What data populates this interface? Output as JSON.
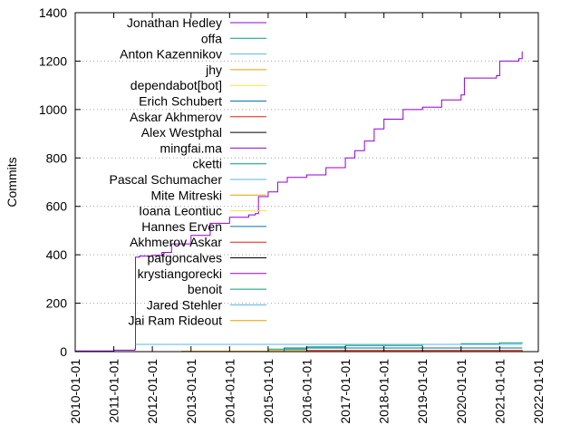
{
  "chart_data": {
    "type": "line",
    "title": "",
    "xlabel": "",
    "ylabel": "Commits",
    "xlim": [
      "2010-01-01",
      "2022-01-01"
    ],
    "ylim": [
      0,
      1400
    ],
    "yticks": [
      0,
      200,
      400,
      600,
      800,
      1000,
      1200,
      1400
    ],
    "xticks": [
      "2010-01-01",
      "2011-01-01",
      "2012-01-01",
      "2013-01-01",
      "2014-01-01",
      "2015-01-01",
      "2016-01-01",
      "2017-01-01",
      "2018-01-01",
      "2019-01-01",
      "2020-01-01",
      "2021-01-01",
      "2022-01-01"
    ],
    "grid": "y-dotted",
    "legend_position": "top-left",
    "series": [
      {
        "name": "Jonathan Hedley",
        "color": "#9400d3",
        "points": [
          [
            "2010-01-01",
            3
          ],
          [
            "2011-01-01",
            6
          ],
          [
            "2011-07-20",
            10
          ],
          [
            "2011-07-25",
            390
          ],
          [
            "2011-09-01",
            395
          ],
          [
            "2012-01-01",
            398
          ],
          [
            "2012-04-01",
            410
          ],
          [
            "2012-07-01",
            445
          ],
          [
            "2013-01-01",
            480
          ],
          [
            "2013-07-01",
            530
          ],
          [
            "2014-01-01",
            555
          ],
          [
            "2014-07-01",
            565
          ],
          [
            "2014-09-01",
            570
          ],
          [
            "2014-10-01",
            640
          ],
          [
            "2015-01-01",
            660
          ],
          [
            "2015-04-01",
            700
          ],
          [
            "2015-07-01",
            720
          ],
          [
            "2016-01-01",
            730
          ],
          [
            "2016-07-01",
            760
          ],
          [
            "2017-01-01",
            800
          ],
          [
            "2017-04-01",
            830
          ],
          [
            "2017-07-01",
            870
          ],
          [
            "2017-10-01",
            920
          ],
          [
            "2018-01-01",
            960
          ],
          [
            "2018-07-01",
            1000
          ],
          [
            "2019-01-01",
            1010
          ],
          [
            "2019-07-01",
            1040
          ],
          [
            "2020-01-01",
            1060
          ],
          [
            "2020-02-01",
            1130
          ],
          [
            "2020-12-01",
            1140
          ],
          [
            "2021-01-01",
            1200
          ],
          [
            "2021-07-01",
            1210
          ],
          [
            "2021-08-01",
            1240
          ]
        ]
      },
      {
        "name": "offa",
        "color": "#009e73",
        "points": [
          [
            "2014-09-01",
            0
          ],
          [
            "2015-01-01",
            10
          ],
          [
            "2016-01-01",
            20
          ],
          [
            "2017-01-01",
            25
          ],
          [
            "2019-01-01",
            30
          ],
          [
            "2020-01-01",
            33
          ],
          [
            "2021-01-01",
            36
          ],
          [
            "2021-08-01",
            38
          ]
        ]
      },
      {
        "name": "Anton Kazennikov",
        "color": "#56b4e9",
        "points": [
          [
            "2011-07-25",
            30
          ],
          [
            "2021-08-01",
            30
          ]
        ]
      },
      {
        "name": "jhy",
        "color": "#e69f00",
        "points": [
          [
            "2012-10-01",
            2
          ],
          [
            "2015-01-01",
            5
          ],
          [
            "2021-08-01",
            8
          ]
        ]
      },
      {
        "name": "dependabot[bot]",
        "color": "#f0e442",
        "points": [
          [
            "2020-01-01",
            0
          ],
          [
            "2021-08-01",
            6
          ]
        ]
      },
      {
        "name": "Erich Schubert",
        "color": "#0072b2",
        "points": [
          [
            "2014-06-01",
            0
          ],
          [
            "2015-06-01",
            15
          ],
          [
            "2021-08-01",
            15
          ]
        ]
      },
      {
        "name": "Askar Akhmerov",
        "color": "#e51e10",
        "points": [
          [
            "2016-01-01",
            5
          ],
          [
            "2021-08-01",
            5
          ]
        ]
      },
      {
        "name": "Alex Westphal",
        "color": "#000000",
        "points": [
          [
            "2013-01-01",
            0
          ],
          [
            "2021-08-01",
            4
          ]
        ]
      },
      {
        "name": "mingfai.ma",
        "color": "#9400d3",
        "points": [
          [
            "2012-01-01",
            0
          ],
          [
            "2021-08-01",
            3
          ]
        ]
      },
      {
        "name": "cketti",
        "color": "#009e73",
        "points": [
          [
            "2014-01-01",
            0
          ],
          [
            "2021-08-01",
            3
          ]
        ]
      },
      {
        "name": "Pascal Schumacher",
        "color": "#56b4e9",
        "points": [
          [
            "2016-01-01",
            0
          ],
          [
            "2021-08-01",
            3
          ]
        ]
      },
      {
        "name": "Mite Mitreski",
        "color": "#e69f00",
        "points": [
          [
            "2012-01-01",
            0
          ],
          [
            "2021-08-01",
            2
          ]
        ]
      },
      {
        "name": "Ioana Leontiuc",
        "color": "#f0e442",
        "points": [
          [
            "2015-01-01",
            0
          ],
          [
            "2021-08-01",
            2
          ]
        ]
      },
      {
        "name": "Hannes Erven",
        "color": "#0072b2",
        "points": [
          [
            "2015-01-01",
            0
          ],
          [
            "2021-08-01",
            2
          ]
        ]
      },
      {
        "name": "Akhmerov Askar",
        "color": "#e51e10",
        "points": [
          [
            "2016-01-01",
            0
          ],
          [
            "2021-08-01",
            2
          ]
        ]
      },
      {
        "name": "pafgoncalves",
        "color": "#000000",
        "points": [
          [
            "2017-01-01",
            0
          ],
          [
            "2021-08-01",
            2
          ]
        ]
      },
      {
        "name": "krystiangorecki",
        "color": "#9400d3",
        "points": [
          [
            "2018-01-01",
            0
          ],
          [
            "2021-08-01",
            2
          ]
        ]
      },
      {
        "name": "benoit",
        "color": "#009e73",
        "points": [
          [
            "2013-01-01",
            0
          ],
          [
            "2021-08-01",
            1
          ]
        ]
      },
      {
        "name": "Jared Stehler",
        "color": "#56b4e9",
        "points": [
          [
            "2014-01-01",
            0
          ],
          [
            "2021-08-01",
            1
          ]
        ]
      },
      {
        "name": "Jai Ram Rideout",
        "color": "#e69f00",
        "points": [
          [
            "2015-01-01",
            0
          ],
          [
            "2021-08-01",
            1
          ]
        ]
      }
    ]
  }
}
